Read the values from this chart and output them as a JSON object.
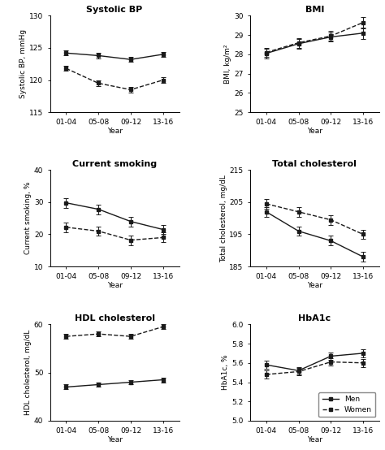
{
  "x_labels": [
    "01-04",
    "05-08",
    "09-12",
    "13-16"
  ],
  "x": [
    0,
    1,
    2,
    3
  ],
  "systolic_bp": {
    "title": "Systolic BP",
    "ylabel": "Systolic BP, mmHg",
    "men": [
      124.2,
      123.8,
      123.2,
      124.0
    ],
    "women": [
      121.8,
      119.5,
      118.5,
      120.0
    ],
    "men_err": [
      0.4,
      0.4,
      0.4,
      0.4
    ],
    "women_err": [
      0.4,
      0.4,
      0.4,
      0.4
    ],
    "ylim": [
      115,
      130
    ],
    "yticks": [
      115,
      120,
      125,
      130
    ]
  },
  "bmi": {
    "title": "BMI",
    "ylabel": "BMI, kg/m²",
    "men": [
      28.05,
      28.55,
      28.9,
      29.1
    ],
    "women": [
      28.1,
      28.6,
      28.95,
      29.65
    ],
    "men_err": [
      0.25,
      0.25,
      0.25,
      0.3
    ],
    "women_err": [
      0.25,
      0.25,
      0.25,
      0.3
    ],
    "ylim": [
      25,
      30
    ],
    "yticks": [
      25,
      26,
      27,
      28,
      29,
      30
    ]
  },
  "smoking": {
    "title": "Current smoking",
    "ylabel": "Current smoking, %",
    "men": [
      29.8,
      27.8,
      24.0,
      21.5
    ],
    "women": [
      22.2,
      21.0,
      18.2,
      19.0
    ],
    "men_err": [
      1.5,
      1.5,
      1.5,
      1.5
    ],
    "women_err": [
      1.5,
      1.5,
      1.5,
      1.5
    ],
    "ylim": [
      10,
      40
    ],
    "yticks": [
      10,
      20,
      30,
      40
    ]
  },
  "total_chol": {
    "title": "Total cholesterol",
    "ylabel": "Total cholesterol, mg/dL",
    "men": [
      202.0,
      196.0,
      193.0,
      188.0
    ],
    "women": [
      204.5,
      202.0,
      199.5,
      195.0
    ],
    "men_err": [
      1.5,
      1.5,
      1.5,
      1.5
    ],
    "women_err": [
      1.5,
      1.5,
      1.5,
      1.5
    ],
    "ylim": [
      185,
      215
    ],
    "yticks": [
      185,
      195,
      205,
      215
    ]
  },
  "hdl_chol": {
    "title": "HDL cholesterol",
    "ylabel": "HDL cholesterol, mg/dL",
    "men": [
      47.0,
      47.5,
      48.0,
      48.5
    ],
    "women": [
      57.5,
      58.0,
      57.5,
      59.5
    ],
    "men_err": [
      0.5,
      0.5,
      0.5,
      0.5
    ],
    "women_err": [
      0.5,
      0.5,
      0.5,
      0.5
    ],
    "ylim": [
      40,
      60
    ],
    "yticks": [
      40,
      50,
      60
    ]
  },
  "hba1c": {
    "title": "HbA1c",
    "ylabel": "HbA1c, %",
    "men": [
      5.58,
      5.52,
      5.67,
      5.7
    ],
    "women": [
      5.48,
      5.51,
      5.61,
      5.6
    ],
    "men_err": [
      0.04,
      0.04,
      0.04,
      0.04
    ],
    "women_err": [
      0.04,
      0.04,
      0.04,
      0.04
    ],
    "ylim": [
      5.0,
      6.0
    ],
    "yticks": [
      5.0,
      5.2,
      5.4,
      5.6,
      5.8,
      6.0
    ]
  },
  "line_color": "#1a1a1a",
  "marker": "s",
  "markersize": 3.5,
  "linewidth": 1.0,
  "capsize": 2,
  "capthick": 0.7,
  "elinewidth": 0.7,
  "xlabel": "Year",
  "legend_labels": [
    "Men",
    "Women"
  ],
  "title_fontsize": 8,
  "label_fontsize": 6.5,
  "tick_fontsize": 6.5
}
